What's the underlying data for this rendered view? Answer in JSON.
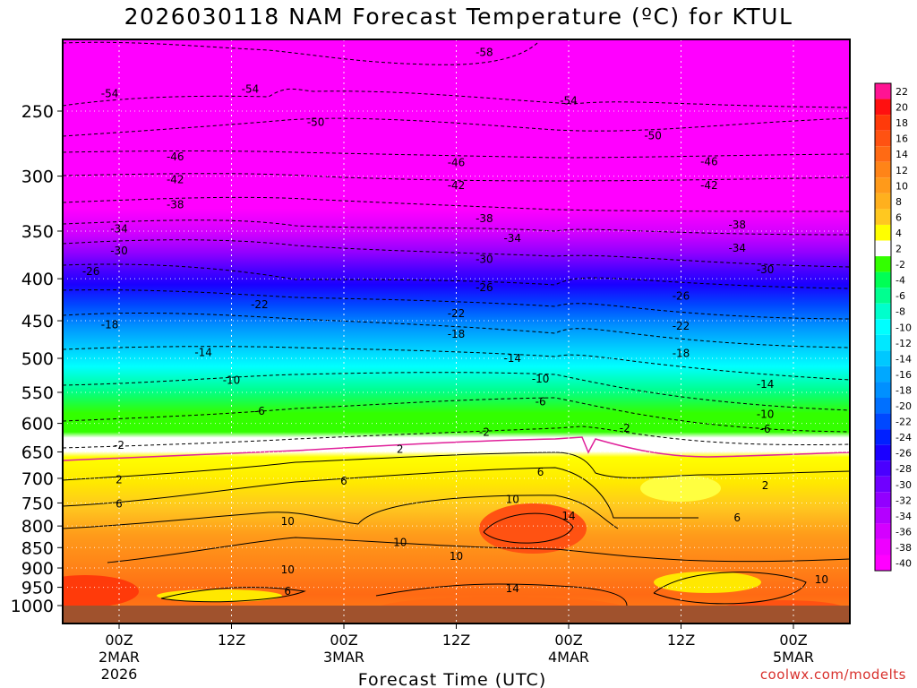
{
  "title": "2026030118 NAM Forecast Temperature (ºC) for KTUL",
  "credit": "coolwx.com/modelts",
  "chart_data": {
    "type": "heatmap",
    "title": "2026030118 NAM Forecast Temperature (ºC) for KTUL",
    "xlabel": "Forecast Time (UTC)",
    "ylabel": "",
    "y_scale": "log-pressure (hPa)",
    "ylim": [
      1000,
      200
    ],
    "xlim": [
      "2026-03-01 18Z",
      "2026-03-05 09Z"
    ],
    "y_ticks": [
      250,
      300,
      350,
      400,
      450,
      500,
      550,
      600,
      650,
      700,
      750,
      800,
      850,
      900,
      950,
      1000
    ],
    "x_ticks": [
      {
        "time": "2026-03-02 00Z",
        "label": [
          "00Z",
          "2MAR",
          "2026"
        ]
      },
      {
        "time": "2026-03-02 12Z",
        "label": [
          "12Z"
        ]
      },
      {
        "time": "2026-03-03 00Z",
        "label": [
          "00Z",
          "3MAR"
        ]
      },
      {
        "time": "2026-03-03 12Z",
        "label": [
          "12Z"
        ]
      },
      {
        "time": "2026-03-04 00Z",
        "label": [
          "00Z",
          "4MAR"
        ]
      },
      {
        "time": "2026-03-04 12Z",
        "label": [
          "12Z"
        ]
      },
      {
        "time": "2026-03-05 00Z",
        "label": [
          "00Z",
          "5MAR"
        ]
      }
    ],
    "color_scale": {
      "labels": [
        "22",
        "20",
        "18",
        "16",
        "14",
        "12",
        "10",
        "8",
        "6",
        "4",
        "2",
        "-2",
        "-4",
        "-6",
        "-8",
        "-10",
        "-12",
        "-14",
        "-16",
        "-18",
        "-20",
        "-22",
        "-24",
        "-26",
        "-28",
        "-30",
        "-32",
        "-34",
        "-36",
        "-38",
        "-40"
      ],
      "colors": [
        "#ff1493",
        "#ff1010",
        "#ff3a0a",
        "#ff5212",
        "#ff6a14",
        "#ff8418",
        "#ff9a1a",
        "#ffb01e",
        "#ffc820",
        "#ffff00",
        "#ffffff",
        "#33ff00",
        "#00ff55",
        "#00ff90",
        "#00ffcc",
        "#00ffff",
        "#00e8ff",
        "#00c8ff",
        "#00a8ff",
        "#0090ff",
        "#0070ff",
        "#0048ff",
        "#0020ff",
        "#1a00ff",
        "#4a00ff",
        "#7000ff",
        "#9200ff",
        "#b400ff",
        "#d400ff",
        "#ee00ff",
        "#ff00ff"
      ]
    },
    "contour_labels": [
      {
        "value": "-58",
        "time": "2026-03-03 15Z",
        "p": 212
      },
      {
        "value": "-54",
        "time": "2026-03-01 23Z",
        "p": 238
      },
      {
        "value": "-54",
        "time": "2026-03-02 14Z",
        "p": 235
      },
      {
        "value": "-54",
        "time": "2026-03-04 00Z",
        "p": 243
      },
      {
        "value": "-50",
        "time": "2026-03-02 21Z",
        "p": 258
      },
      {
        "value": "-50",
        "time": "2026-03-04 09Z",
        "p": 268
      },
      {
        "value": "-46",
        "time": "2026-03-02 06Z",
        "p": 284
      },
      {
        "value": "-46",
        "time": "2026-03-03 12Z",
        "p": 289
      },
      {
        "value": "-46",
        "time": "2026-03-04 15Z",
        "p": 288
      },
      {
        "value": "-42",
        "time": "2026-03-02 06Z",
        "p": 303
      },
      {
        "value": "-42",
        "time": "2026-03-03 12Z",
        "p": 308
      },
      {
        "value": "-42",
        "time": "2026-03-04 15Z",
        "p": 308
      },
      {
        "value": "-38",
        "time": "2026-03-02 06Z",
        "p": 325
      },
      {
        "value": "-38",
        "time": "2026-03-03 15Z",
        "p": 338
      },
      {
        "value": "-38",
        "time": "2026-03-04 18Z",
        "p": 344
      },
      {
        "value": "-34",
        "time": "2026-03-02 00Z",
        "p": 348
      },
      {
        "value": "-34",
        "time": "2026-03-03 18Z",
        "p": 357
      },
      {
        "value": "-34",
        "time": "2026-03-04 18Z",
        "p": 367
      },
      {
        "value": "-30",
        "time": "2026-03-02 00Z",
        "p": 370
      },
      {
        "value": "-30",
        "time": "2026-03-03 15Z",
        "p": 379
      },
      {
        "value": "-30",
        "time": "2026-03-04 21Z",
        "p": 390
      },
      {
        "value": "-26",
        "time": "2026-03-01 21Z",
        "p": 392
      },
      {
        "value": "-26",
        "time": "2026-03-03 15Z",
        "p": 410
      },
      {
        "value": "-26",
        "time": "2026-03-04 12Z",
        "p": 420
      },
      {
        "value": "-22",
        "time": "2026-03-02 15Z",
        "p": 430
      },
      {
        "value": "-22",
        "time": "2026-03-03 12Z",
        "p": 441
      },
      {
        "value": "-22",
        "time": "2026-03-04 12Z",
        "p": 457
      },
      {
        "value": "-18",
        "time": "2026-03-01 23Z",
        "p": 455
      },
      {
        "value": "-18",
        "time": "2026-03-03 12Z",
        "p": 467
      },
      {
        "value": "-18",
        "time": "2026-03-04 12Z",
        "p": 493
      },
      {
        "value": "-14",
        "time": "2026-03-02 09Z",
        "p": 492
      },
      {
        "value": "-14",
        "time": "2026-03-03 18Z",
        "p": 500
      },
      {
        "value": "-14",
        "time": "2026-03-04 21Z",
        "p": 538
      },
      {
        "value": "-10",
        "time": "2026-03-02 12Z",
        "p": 532
      },
      {
        "value": "-10",
        "time": "2026-03-03 21Z",
        "p": 530
      },
      {
        "value": "-10",
        "time": "2026-03-04 21Z",
        "p": 585
      },
      {
        "value": "-6",
        "time": "2026-03-02 15Z",
        "p": 580
      },
      {
        "value": "-6",
        "time": "2026-03-03 21Z",
        "p": 565
      },
      {
        "value": "-6",
        "time": "2026-03-04 21Z",
        "p": 610
      },
      {
        "value": "-2",
        "time": "2026-03-02 00Z",
        "p": 638
      },
      {
        "value": "-2",
        "time": "2026-03-03 15Z",
        "p": 615
      },
      {
        "value": "-2",
        "time": "2026-03-04 06Z",
        "p": 608
      },
      {
        "value": "2",
        "time": "2026-03-02 00Z",
        "p": 703
      },
      {
        "value": "2",
        "time": "2026-03-03 06Z",
        "p": 645
      },
      {
        "value": "2",
        "time": "2026-03-04 21Z",
        "p": 714
      },
      {
        "value": "6",
        "time": "2026-03-02 00Z",
        "p": 752
      },
      {
        "value": "6",
        "time": "2026-03-03 00Z",
        "p": 705
      },
      {
        "value": "6",
        "time": "2026-03-03 21Z",
        "p": 688
      },
      {
        "value": "6",
        "time": "2026-03-04 18Z",
        "p": 782
      },
      {
        "value": "6",
        "time": "2026-03-02 18Z",
        "p": 961
      },
      {
        "value": "10",
        "time": "2026-03-02 18Z",
        "p": 790
      },
      {
        "value": "10",
        "time": "2026-03-03 18Z",
        "p": 743
      },
      {
        "value": "10",
        "time": "2026-03-03 06Z",
        "p": 838
      },
      {
        "value": "10",
        "time": "2026-03-03 12Z",
        "p": 871
      },
      {
        "value": "10",
        "time": "2026-03-02 18Z",
        "p": 904
      },
      {
        "value": "10",
        "time": "2026-03-05 03Z",
        "p": 930
      },
      {
        "value": "14",
        "time": "2026-03-04 00Z",
        "p": 778
      },
      {
        "value": "14",
        "time": "2026-03-03 18Z",
        "p": 953
      }
    ]
  }
}
